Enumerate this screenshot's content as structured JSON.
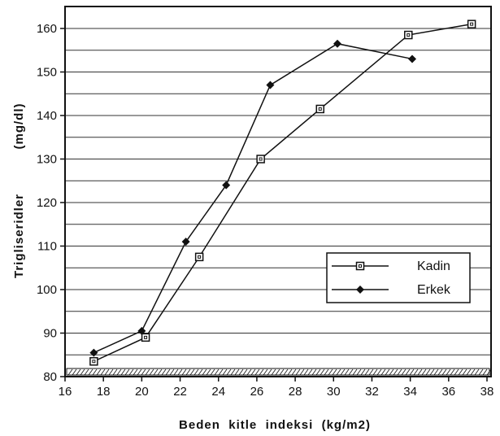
{
  "chart_data": {
    "type": "line",
    "xlabel": "Beden  kitle  indeksi  (kg/m2)",
    "ylabel": "Trigliseridler",
    "ylabel_unit": "(mg/dl)",
    "xlim": [
      16,
      38
    ],
    "ylim": [
      80,
      165
    ],
    "x_ticks": [
      16,
      18,
      20,
      22,
      24,
      26,
      28,
      30,
      32,
      34,
      36,
      38
    ],
    "y_ticks": [
      80,
      90,
      100,
      110,
      120,
      130,
      140,
      150,
      160
    ],
    "grid": "horizontal lines every 5 mg/dl",
    "legend_position": "lower-right",
    "series": [
      {
        "name": "Kadin",
        "marker": "open-square",
        "x": [
          17.5,
          20.2,
          23.0,
          26.2,
          29.3,
          33.9,
          37.2
        ],
        "y": [
          83.5,
          89,
          107.5,
          130,
          141.5,
          158.5,
          161
        ]
      },
      {
        "name": "Erkek",
        "marker": "filled-diamond",
        "x": [
          17.5,
          20.0,
          22.3,
          24.4,
          26.7,
          30.2,
          34.1
        ],
        "y": [
          85.5,
          90.5,
          111,
          124,
          147,
          156.5,
          153
        ]
      }
    ]
  },
  "colors": {
    "line": "#111111",
    "grid": "#333333",
    "background": "#ffffff"
  }
}
